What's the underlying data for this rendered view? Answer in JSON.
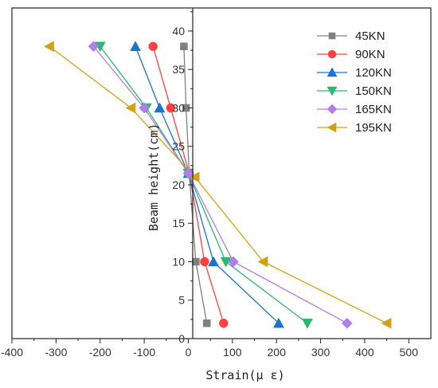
{
  "chart_data": {
    "type": "line",
    "title": "",
    "xlabel": "Strain(μ ε)",
    "ylabel": "Beam height(cm)",
    "xlim": [
      -400,
      550
    ],
    "ylim": [
      0,
      43
    ],
    "xticks": [
      -400,
      -300,
      -200,
      -100,
      0,
      100,
      200,
      300,
      400,
      500
    ],
    "yticks": [
      0,
      5,
      10,
      15,
      20,
      25,
      30,
      35,
      40
    ],
    "grid": false,
    "legend_position": "top-right",
    "series": [
      {
        "name": "45KN",
        "color": "#808080",
        "marker": "square",
        "points": [
          [
            -10,
            38
          ],
          [
            -5,
            30
          ],
          [
            2,
            21.5
          ],
          [
            17,
            10
          ],
          [
            42,
            2
          ]
        ]
      },
      {
        "name": "90KN",
        "color": "#ff4040",
        "marker": "circle",
        "points": [
          [
            -80,
            38
          ],
          [
            -40,
            30
          ],
          [
            2,
            21.5
          ],
          [
            37,
            10
          ],
          [
            80,
            2
          ]
        ]
      },
      {
        "name": "120KN",
        "color": "#1874cd",
        "marker": "triangle-up",
        "points": [
          [
            -120,
            38
          ],
          [
            -65,
            30
          ],
          [
            0,
            21.5
          ],
          [
            57,
            10
          ],
          [
            205,
            2
          ]
        ]
      },
      {
        "name": "150KN",
        "color": "#2bb673",
        "marker": "triangle-down",
        "points": [
          [
            -200,
            38
          ],
          [
            -95,
            30
          ],
          [
            0,
            21.5
          ],
          [
            85,
            10
          ],
          [
            270,
            2
          ]
        ]
      },
      {
        "name": "165KN",
        "color": "#b07ee8",
        "marker": "diamond",
        "points": [
          [
            -215,
            38
          ],
          [
            -100,
            30
          ],
          [
            0,
            21.5
          ],
          [
            102,
            10
          ],
          [
            360,
            2
          ]
        ]
      },
      {
        "name": "195KN",
        "color": "#d4a017",
        "marker": "triangle-left",
        "points": [
          [
            -315,
            38
          ],
          [
            -130,
            30
          ],
          [
            15,
            21
          ],
          [
            170,
            10
          ],
          [
            450,
            2
          ]
        ]
      }
    ]
  }
}
